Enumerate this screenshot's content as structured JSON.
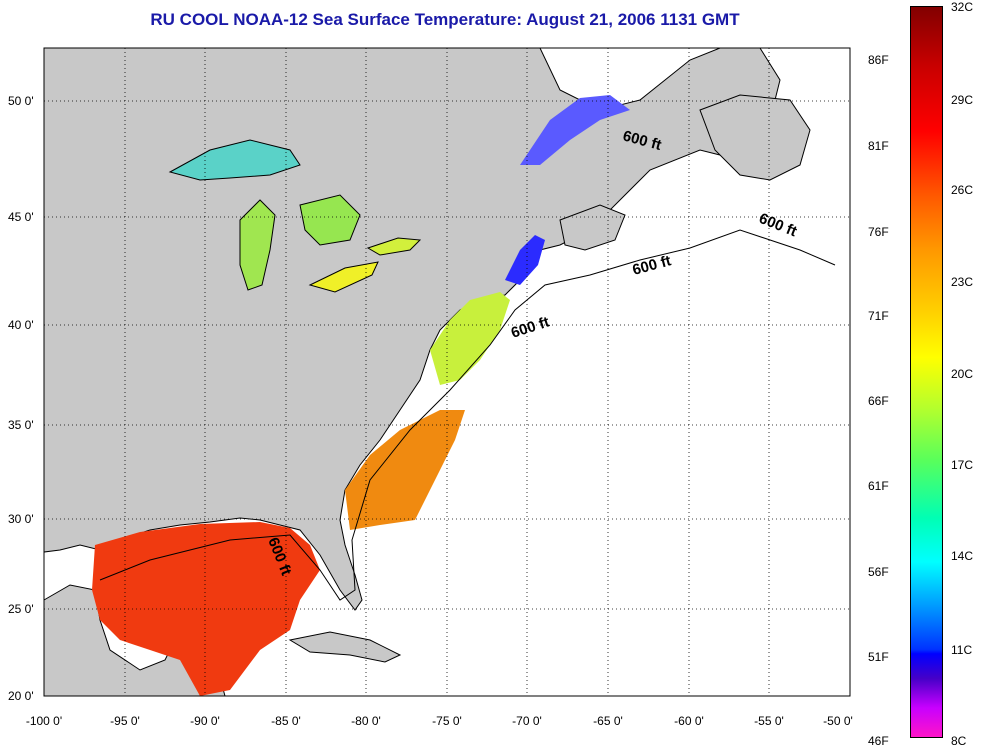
{
  "title": "RU COOL  NOAA-12  Sea Surface Temperature:  August 21, 2006 1131 GMT",
  "axes": {
    "lon_labels": [
      "-100 0'",
      "-95 0'",
      "-90 0'",
      "-85 0'",
      "-80 0'",
      "-75 0'",
      "-70 0'",
      "-65 0'",
      "-60 0'",
      "-55 0'",
      "-50 0'"
    ],
    "lat_labels": [
      "20 0'",
      "25 0'",
      "30 0'",
      "35 0'",
      "40 0'",
      "45 0'",
      "50 0'"
    ]
  },
  "isobath_label": "600 ft",
  "colorbar": {
    "fahrenheit": [
      "86F",
      "81F",
      "76F",
      "71F",
      "66F",
      "61F",
      "56F",
      "51F",
      "46F"
    ],
    "celsius": [
      "32C",
      "29C",
      "26C",
      "23C",
      "20C",
      "17C",
      "14C",
      "11C",
      "8C"
    ]
  },
  "colors": {
    "land": "#c8c8c8",
    "title": "#1a1aa8",
    "warm": "#f03a10",
    "cool": "#2b2bff"
  }
}
